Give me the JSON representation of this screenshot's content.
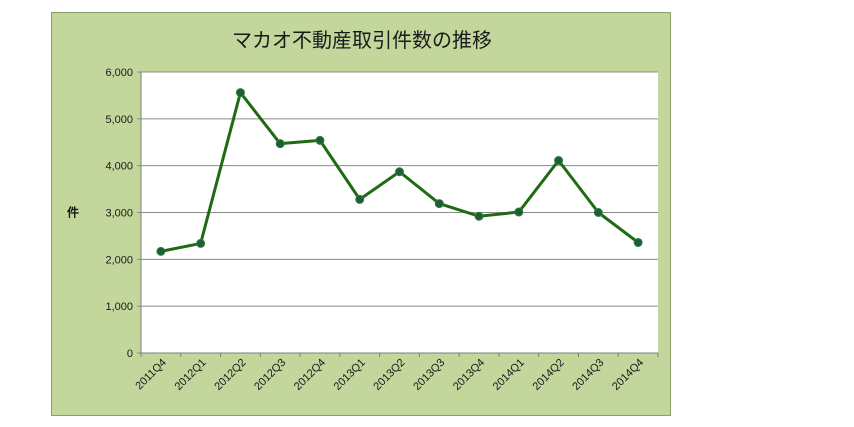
{
  "chart_data": {
    "type": "line",
    "title": "マカオ不動産取引件数の推移",
    "xlabel": "",
    "ylabel": "件",
    "categories": [
      "2011Q4",
      "2012Q1",
      "2012Q2",
      "2012Q3",
      "2012Q4",
      "2013Q1",
      "2013Q2",
      "2013Q3",
      "2013Q4",
      "2014Q1",
      "2014Q2",
      "2014Q3",
      "2014Q4"
    ],
    "values": [
      2170,
      2340,
      5560,
      4470,
      4540,
      3280,
      3870,
      3190,
      2920,
      3010,
      4110,
      3000,
      2360
    ],
    "ylim": [
      0,
      6000
    ],
    "yticks": [
      0,
      1000,
      2000,
      3000,
      4000,
      5000,
      6000
    ],
    "ytick_labels": [
      "0",
      "1,000",
      "2,000",
      "3,000",
      "4,000",
      "5,000",
      "6,000"
    ],
    "grid": true,
    "legend": "none",
    "colors": {
      "frame_background": "#c3d69b",
      "plot_background": "#ffffff",
      "line": "#1e6b12",
      "marker": "#1e5f32",
      "gridline": "#8c8c8c"
    }
  }
}
